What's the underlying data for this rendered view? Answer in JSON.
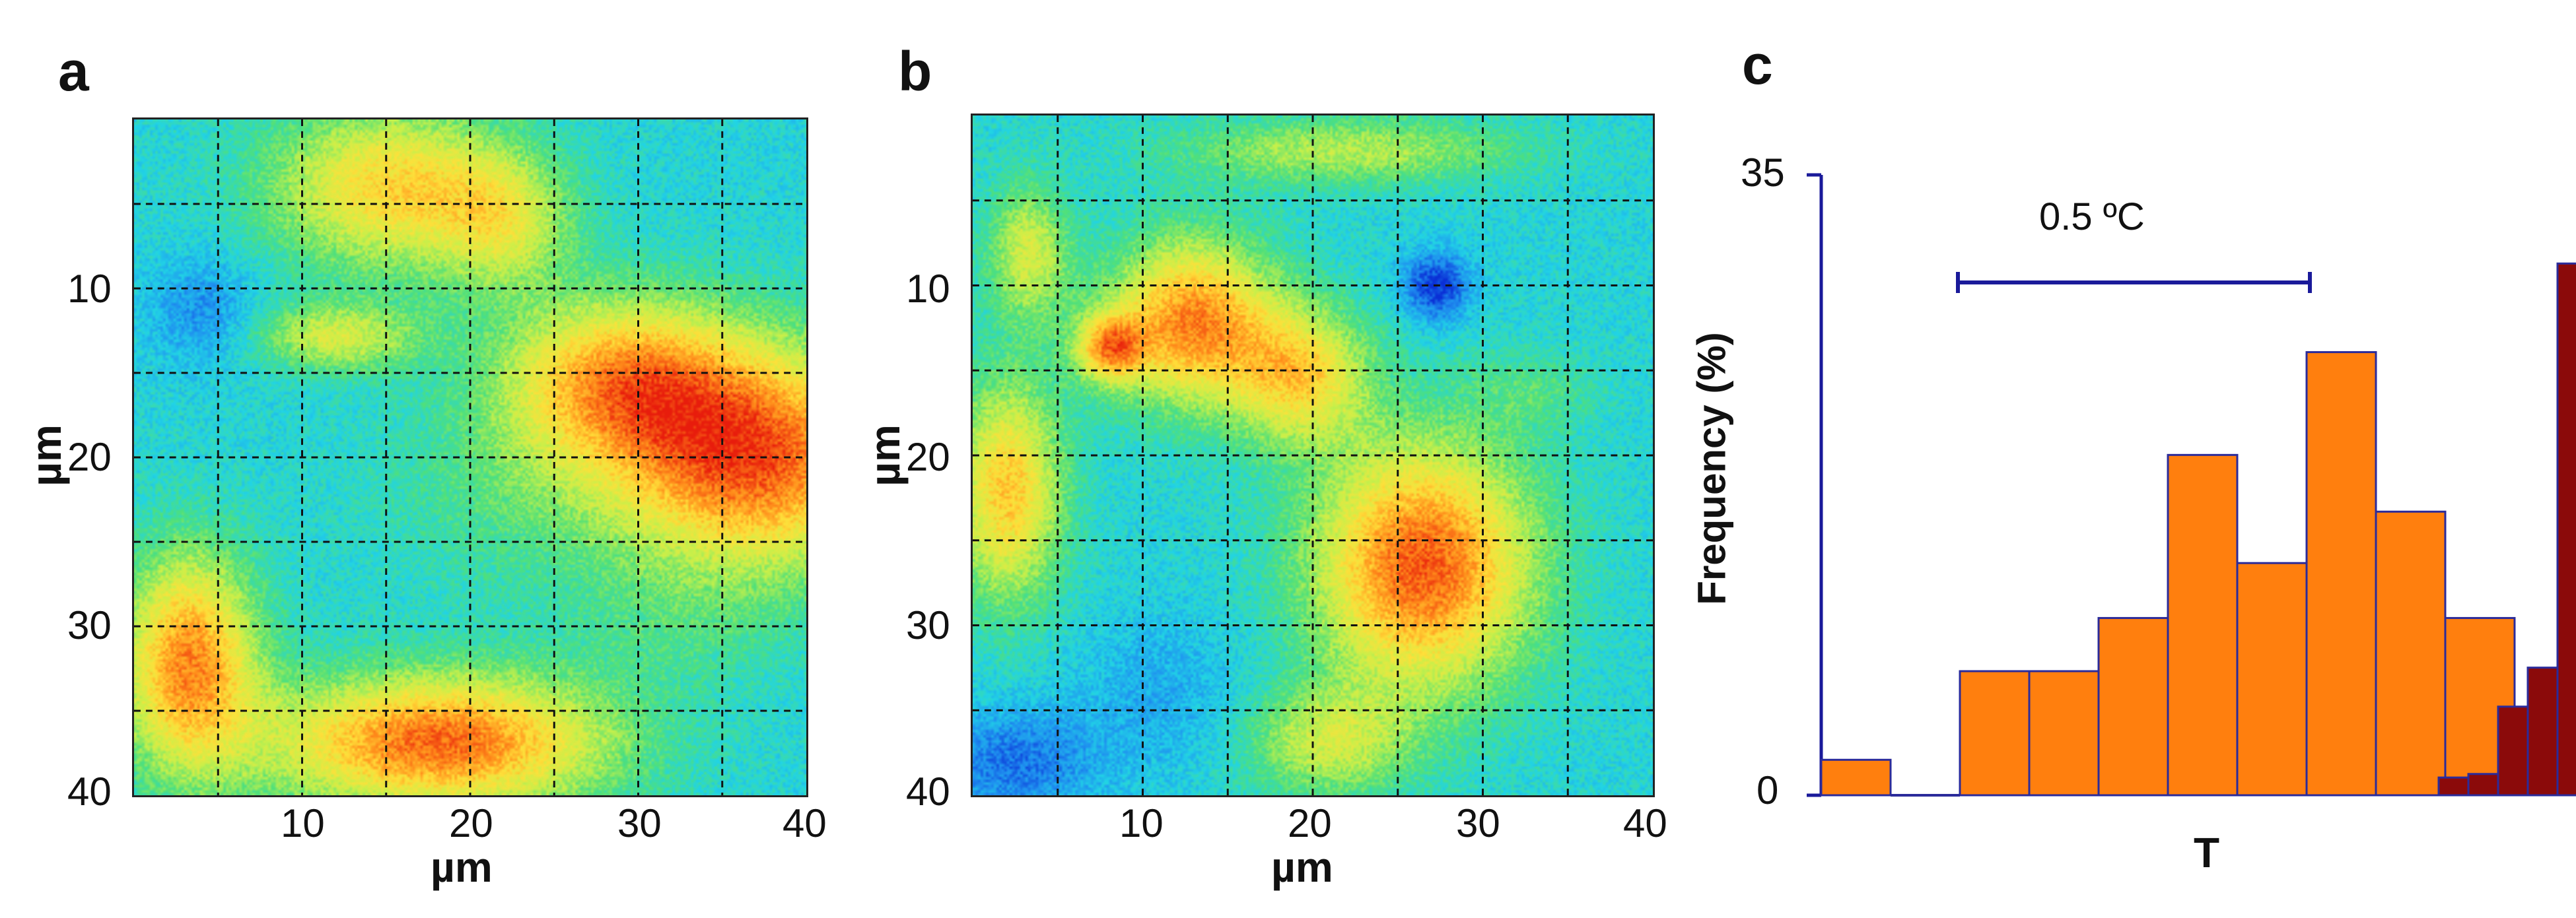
{
  "panels": {
    "a": {
      "letter": "a"
    },
    "b": {
      "letter": "b"
    },
    "c": {
      "letter": "c"
    }
  },
  "colors": {
    "histogram_fill": "#ff7f0e",
    "histogram_fill_alt": "#f97a00",
    "histogram_edge": "#2b2b9a",
    "dark_bars": "#8b0a0a",
    "axis_blue": "#1a1a9a",
    "colormap": [
      "#0a2fd6",
      "#1f8ff0",
      "#21d4e6",
      "#4fe07a",
      "#c8f04a",
      "#ffe03a",
      "#ff8a1a",
      "#e81c0c"
    ]
  },
  "chart_data": [
    {
      "type": "heatmap",
      "panel": "a",
      "xlabel": "µm",
      "ylabel": "µm",
      "xlim": [
        0,
        40
      ],
      "ylim": [
        0,
        40
      ],
      "x_ticks": [
        "10",
        "20",
        "30",
        "40"
      ],
      "y_ticks": [
        "10",
        "20",
        "30",
        "40"
      ],
      "grid": true,
      "grid_spacing": 5,
      "colormap": "jet"
    },
    {
      "type": "heatmap",
      "panel": "b",
      "xlabel": "µm",
      "ylabel": "µm",
      "xlim": [
        0,
        40
      ],
      "ylim": [
        0,
        40
      ],
      "x_ticks": [
        "10",
        "20",
        "30",
        "40"
      ],
      "y_ticks": [
        "10",
        "20",
        "30",
        "40"
      ],
      "grid": true,
      "grid_spacing": 5,
      "colormap": "jet"
    },
    {
      "type": "bar",
      "panel": "c",
      "xlabel": "T",
      "ylabel": "Frequency (%)",
      "ylim": [
        0,
        35
      ],
      "y_ticks": [
        "0",
        "35"
      ],
      "annotation": "0.5 ºC",
      "series": [
        {
          "values": [
            2,
            0,
            7,
            7,
            10,
            19.2,
            13.1,
            25,
            16,
            10
          ]
        },
        {
          "values": [
            1,
            1.2,
            5,
            7.2,
            30
          ]
        }
      ]
    }
  ]
}
